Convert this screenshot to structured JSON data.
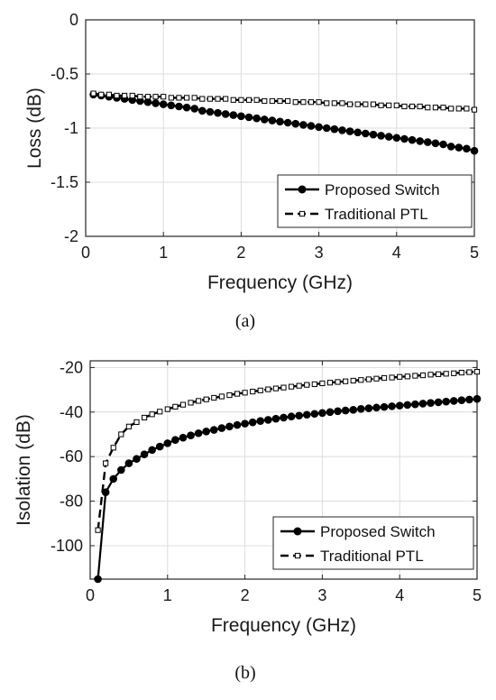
{
  "chart_data": [
    {
      "type": "line",
      "caption": "(a)",
      "xlabel": "Frequency (GHz)",
      "ylabel": "Loss (dB)",
      "xlim": [
        0,
        5
      ],
      "ylim": [
        -2,
        0
      ],
      "xticks": [
        0,
        1,
        2,
        3,
        4,
        5
      ],
      "yticks": [
        0,
        -0.5,
        -1,
        -1.5,
        -2
      ],
      "xtick_labels": [
        "0",
        "1",
        "2",
        "3",
        "4",
        "5"
      ],
      "ytick_labels": [
        "0",
        "-0.5",
        "-1",
        "-1.5",
        "-2"
      ],
      "grid": true,
      "legend_position": "bottom-right",
      "series": [
        {
          "name": "Proposed Switch",
          "marker": "filled-circle",
          "line": "solid",
          "x": [
            0.1,
            0.2,
            0.3,
            0.4,
            0.5,
            0.6,
            0.7,
            0.8,
            0.9,
            1.0,
            1.1,
            1.2,
            1.3,
            1.4,
            1.5,
            1.6,
            1.7,
            1.8,
            1.9,
            2.0,
            2.1,
            2.2,
            2.3,
            2.4,
            2.5,
            2.6,
            2.7,
            2.8,
            2.9,
            3.0,
            3.1,
            3.2,
            3.3,
            3.4,
            3.5,
            3.6,
            3.7,
            3.8,
            3.9,
            4.0,
            4.1,
            4.2,
            4.3,
            4.4,
            4.5,
            4.6,
            4.7,
            4.8,
            4.9,
            5.0
          ],
          "y": [
            -0.69,
            -0.7,
            -0.71,
            -0.72,
            -0.73,
            -0.74,
            -0.75,
            -0.76,
            -0.77,
            -0.78,
            -0.79,
            -0.8,
            -0.81,
            -0.82,
            -0.84,
            -0.85,
            -0.86,
            -0.87,
            -0.88,
            -0.89,
            -0.9,
            -0.91,
            -0.92,
            -0.93,
            -0.94,
            -0.95,
            -0.96,
            -0.97,
            -0.98,
            -0.99,
            -1.0,
            -1.01,
            -1.02,
            -1.03,
            -1.04,
            -1.05,
            -1.06,
            -1.07,
            -1.08,
            -1.09,
            -1.1,
            -1.11,
            -1.12,
            -1.13,
            -1.14,
            -1.15,
            -1.17,
            -1.18,
            -1.19,
            -1.21
          ]
        },
        {
          "name": "Traditional PTL",
          "marker": "open-square",
          "line": "dashed",
          "x": [
            0.1,
            0.2,
            0.3,
            0.4,
            0.5,
            0.6,
            0.7,
            0.8,
            0.9,
            1.0,
            1.1,
            1.2,
            1.3,
            1.4,
            1.5,
            1.6,
            1.7,
            1.8,
            1.9,
            2.0,
            2.1,
            2.2,
            2.3,
            2.4,
            2.5,
            2.6,
            2.7,
            2.8,
            2.9,
            3.0,
            3.1,
            3.2,
            3.3,
            3.4,
            3.5,
            3.6,
            3.7,
            3.8,
            3.9,
            4.0,
            4.1,
            4.2,
            4.3,
            4.4,
            4.5,
            4.6,
            4.7,
            4.8,
            4.9,
            5.0
          ],
          "y": [
            -0.68,
            -0.69,
            -0.69,
            -0.7,
            -0.7,
            -0.7,
            -0.71,
            -0.71,
            -0.71,
            -0.71,
            -0.72,
            -0.72,
            -0.72,
            -0.72,
            -0.73,
            -0.73,
            -0.73,
            -0.73,
            -0.74,
            -0.74,
            -0.74,
            -0.74,
            -0.75,
            -0.75,
            -0.75,
            -0.75,
            -0.76,
            -0.76,
            -0.76,
            -0.76,
            -0.77,
            -0.77,
            -0.77,
            -0.78,
            -0.78,
            -0.78,
            -0.78,
            -0.79,
            -0.79,
            -0.79,
            -0.8,
            -0.8,
            -0.8,
            -0.81,
            -0.81,
            -0.81,
            -0.82,
            -0.82,
            -0.82,
            -0.83
          ]
        }
      ]
    },
    {
      "type": "line",
      "caption": "(b)",
      "xlabel": "Frequency (GHz)",
      "ylabel": "Isolation (dB)",
      "xlim": [
        0,
        5
      ],
      "ylim": [
        -115,
        -17
      ],
      "xticks": [
        0,
        1,
        2,
        3,
        4,
        5
      ],
      "yticks": [
        -20,
        -40,
        -60,
        -80,
        -100
      ],
      "xtick_labels": [
        "0",
        "1",
        "2",
        "3",
        "4",
        "5"
      ],
      "ytick_labels": [
        "-20",
        "-40",
        "-60",
        "-80",
        "-100"
      ],
      "grid": true,
      "legend_position": "bottom-right",
      "series": [
        {
          "name": "Proposed Switch",
          "marker": "filled-circle",
          "line": "solid",
          "x": [
            0.1,
            0.2,
            0.3,
            0.4,
            0.5,
            0.6,
            0.7,
            0.8,
            0.9,
            1.0,
            1.1,
            1.2,
            1.3,
            1.4,
            1.5,
            1.6,
            1.7,
            1.8,
            1.9,
            2.0,
            2.1,
            2.2,
            2.3,
            2.4,
            2.5,
            2.6,
            2.7,
            2.8,
            2.9,
            3.0,
            3.1,
            3.2,
            3.3,
            3.4,
            3.5,
            3.6,
            3.7,
            3.8,
            3.9,
            4.0,
            4.1,
            4.2,
            4.3,
            4.4,
            4.5,
            4.6,
            4.7,
            4.8,
            4.9,
            5.0
          ],
          "y": [
            -115,
            -76,
            -70,
            -66,
            -63,
            -61,
            -59,
            -57,
            -55.5,
            -54,
            -52.5,
            -51.5,
            -50.5,
            -49.5,
            -48.7,
            -48,
            -47.2,
            -46.5,
            -45.8,
            -45.2,
            -44.6,
            -44,
            -43.5,
            -43,
            -42.5,
            -42,
            -41.6,
            -41.2,
            -40.8,
            -40.4,
            -40,
            -39.6,
            -39.3,
            -39,
            -38.6,
            -38.3,
            -38,
            -37.7,
            -37.4,
            -37.1,
            -36.8,
            -36.5,
            -36.2,
            -35.9,
            -35.6,
            -35.3,
            -35,
            -34.7,
            -34.4,
            -34.1
          ]
        },
        {
          "name": "Traditional PTL",
          "marker": "open-square",
          "line": "dashed",
          "x": [
            0.1,
            0.2,
            0.3,
            0.4,
            0.5,
            0.6,
            0.7,
            0.8,
            0.9,
            1.0,
            1.1,
            1.2,
            1.3,
            1.4,
            1.5,
            1.6,
            1.7,
            1.8,
            1.9,
            2.0,
            2.1,
            2.2,
            2.3,
            2.4,
            2.5,
            2.6,
            2.7,
            2.8,
            2.9,
            3.0,
            3.1,
            3.2,
            3.3,
            3.4,
            3.5,
            3.6,
            3.7,
            3.8,
            3.9,
            4.0,
            4.1,
            4.2,
            4.3,
            4.4,
            4.5,
            4.6,
            4.7,
            4.8,
            4.9,
            5.0
          ],
          "y": [
            -93,
            -63,
            -56,
            -50,
            -46.5,
            -44.5,
            -42.5,
            -41,
            -39.8,
            -38.7,
            -37.6,
            -36.7,
            -35.8,
            -35,
            -34.3,
            -33.6,
            -33,
            -32.4,
            -31.8,
            -31.3,
            -30.8,
            -30.3,
            -29.8,
            -29.4,
            -29,
            -28.6,
            -28.2,
            -27.8,
            -27.5,
            -27.1,
            -26.8,
            -26.5,
            -26.2,
            -25.9,
            -25.6,
            -25.3,
            -25,
            -24.7,
            -24.5,
            -24.2,
            -24,
            -23.7,
            -23.5,
            -23.2,
            -23,
            -22.8,
            -22.6,
            -22.3,
            -22.1,
            -21.9
          ]
        }
      ]
    }
  ]
}
